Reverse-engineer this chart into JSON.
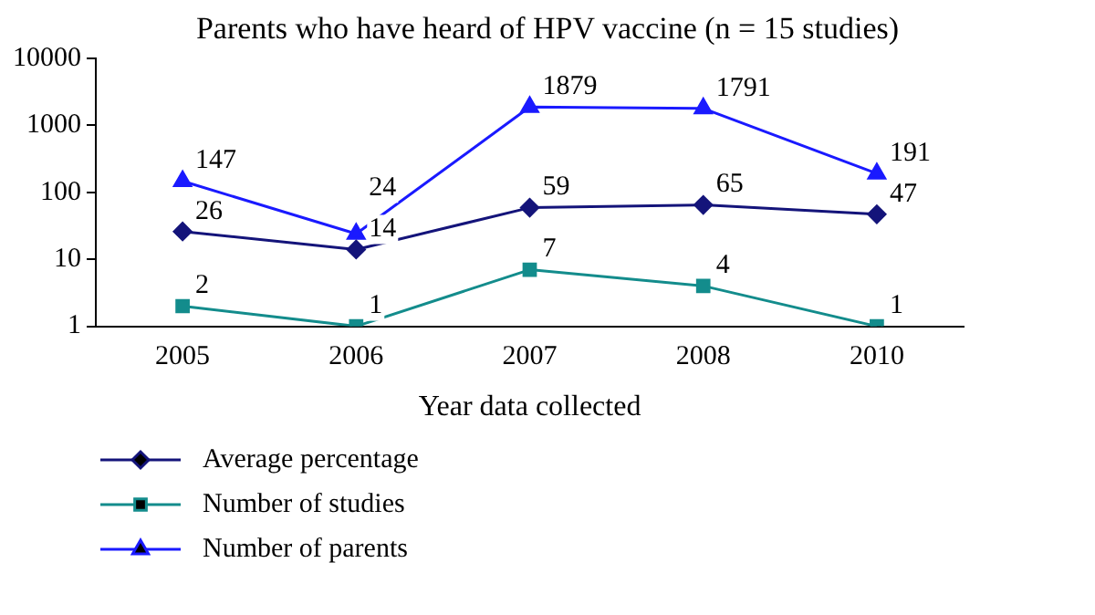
{
  "chart_data": {
    "type": "line",
    "title": "Parents who have heard of HPV vaccine (n = 15 studies)",
    "xlabel": "Year data collected",
    "categories": [
      "2005",
      "2006",
      "2007",
      "2008",
      "2010"
    ],
    "series": [
      {
        "name": "Average percentage",
        "color": "#14147a",
        "marker": "diamond",
        "values": [
          26,
          14,
          59,
          65,
          47
        ]
      },
      {
        "name": "Number of studies",
        "color": "#138c8c",
        "marker": "square",
        "values": [
          2,
          1,
          7,
          4,
          1
        ]
      },
      {
        "name": "Number of parents",
        "color": "#1a1aff",
        "marker": "triangle",
        "values": [
          147,
          24,
          1879,
          1791,
          191
        ]
      }
    ],
    "log": true,
    "ylim": [
      1,
      10000
    ],
    "yticks": [
      1,
      10,
      100,
      1000,
      10000
    ],
    "grid": false,
    "legend": "bottom left",
    "data_labels": true,
    "line_style": "solid"
  }
}
